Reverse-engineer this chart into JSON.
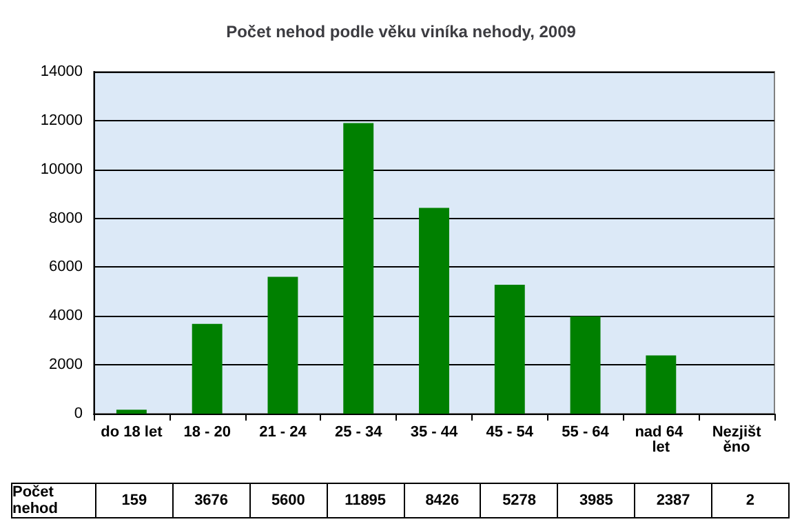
{
  "chart_data": {
    "type": "bar",
    "title": "Počet nehod podle věku viníka nehody, 2009",
    "categories": [
      "do 18 let",
      "18 - 20",
      "21 - 24",
      "25 - 34",
      "35 - 44",
      "45 - 54",
      "55 - 64",
      "nad 64 let",
      "Nezjištěno"
    ],
    "series": [
      {
        "name": "Počet nehod",
        "color": "#008000",
        "values": [
          159,
          3676,
          5600,
          11895,
          8426,
          5278,
          3985,
          2387,
          2
        ]
      }
    ],
    "ylim": [
      0,
      14000
    ],
    "yticks": [
      0,
      2000,
      4000,
      6000,
      8000,
      10000,
      12000,
      14000
    ],
    "grid": "y",
    "legend": false,
    "data_labels": true
  }
}
